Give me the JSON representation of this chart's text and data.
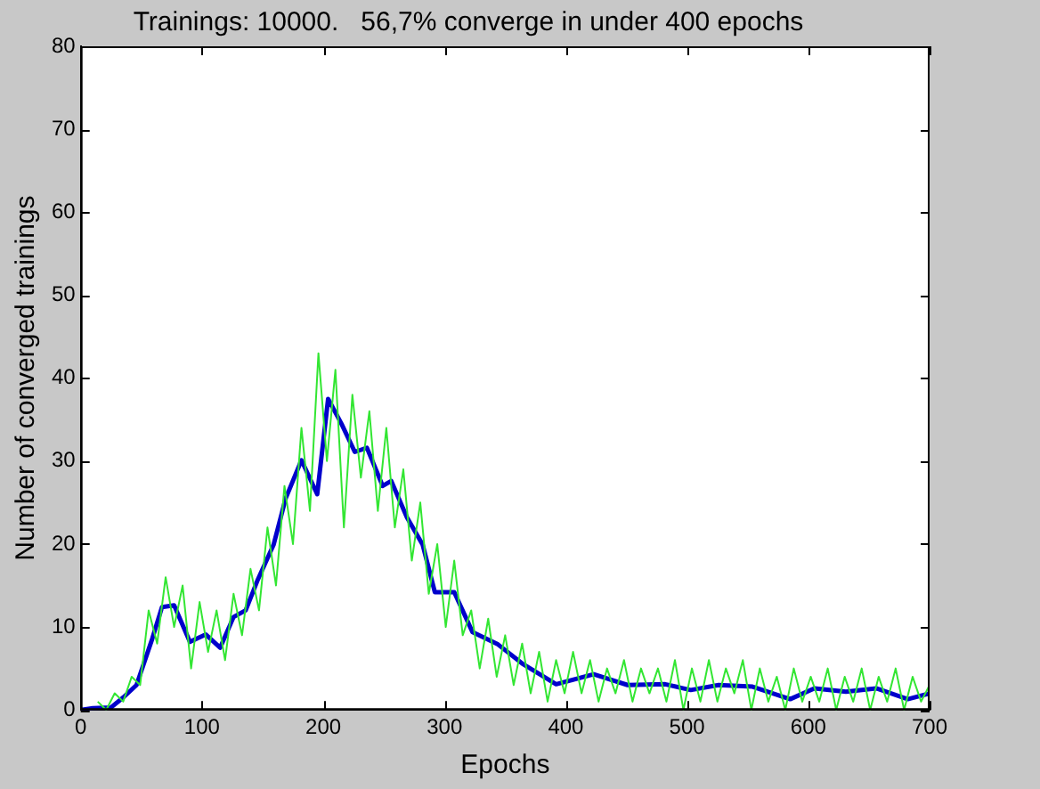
{
  "chart_data": {
    "type": "line",
    "title": "Trainings: 10000.   56,7% converge in under 400 epochs",
    "xlabel": "Epochs",
    "ylabel": "Number of converged trainings",
    "xlim": [
      0,
      700
    ],
    "xticks": [
      0,
      100,
      200,
      300,
      400,
      500,
      600,
      700
    ],
    "ylim": [
      0,
      80
    ],
    "yticks": [
      0,
      10,
      20,
      30,
      40,
      50,
      60,
      70,
      80
    ],
    "grid": false,
    "legend": false,
    "marker": "none",
    "line_style": "solid",
    "series": [
      {
        "color": "#33e633",
        "x": [
          14,
          21,
          28,
          35,
          42,
          49,
          56,
          63,
          70,
          77,
          84,
          91,
          98,
          105,
          112,
          119,
          126,
          133,
          140,
          147,
          154,
          161,
          168,
          175,
          182,
          189,
          196,
          203,
          210,
          217,
          224,
          231,
          238,
          245,
          252,
          259,
          266,
          273,
          280,
          287,
          294,
          301,
          308,
          315,
          322,
          329,
          336,
          343,
          350,
          357,
          364,
          371,
          378,
          385,
          392,
          399,
          406,
          413,
          420,
          427,
          434,
          441,
          448,
          455,
          462,
          469,
          476,
          483,
          490,
          497,
          504,
          511,
          518,
          525,
          532,
          539,
          546,
          553,
          560,
          567,
          574,
          581,
          588,
          595,
          602,
          609,
          616,
          623,
          630,
          637,
          644,
          651,
          658,
          665,
          672,
          679,
          686,
          693,
          700
        ],
        "values": [
          1,
          0,
          2,
          1,
          4,
          3,
          12,
          8,
          16,
          10,
          15,
          5,
          13,
          7,
          12,
          6,
          14,
          9,
          17,
          12,
          22,
          15,
          27,
          20,
          34,
          24,
          43,
          30,
          41,
          22,
          38,
          28,
          36,
          24,
          34,
          22,
          29,
          18,
          25,
          14,
          20,
          10,
          18,
          9,
          12,
          5,
          11,
          4,
          9,
          3,
          8,
          2,
          7,
          1,
          6,
          2,
          7,
          2,
          6,
          1,
          5,
          2,
          6,
          1,
          5,
          2,
          5,
          1,
          6,
          0,
          5,
          1,
          6,
          1,
          5,
          2,
          6,
          0,
          5,
          1,
          4,
          0,
          5,
          1,
          4,
          1,
          5,
          0,
          4,
          1,
          5,
          0,
          4,
          1,
          5,
          0,
          4,
          1,
          3
        ]
      },
      {
        "color": "#0000cc",
        "x": [
          0,
          10,
          25,
          35,
          46,
          59,
          67,
          77,
          90,
          103,
          115,
          126,
          136,
          146,
          159,
          169,
          182,
          195,
          204,
          215,
          226,
          236,
          249,
          256,
          269,
          282,
          292,
          308,
          323,
          344,
          364,
          392,
          423,
          451,
          482,
          503,
          526,
          554,
          585,
          605,
          631,
          656,
          682,
          700
        ],
        "values": [
          0,
          0.2,
          0.3,
          1.5,
          3,
          8.6,
          12.4,
          12.6,
          8.2,
          9.1,
          7.5,
          11.2,
          12,
          15.7,
          19.9,
          25.5,
          30.1,
          26,
          37.5,
          34.5,
          31.1,
          31.6,
          27,
          27.6,
          23.2,
          19.9,
          14.2,
          14.2,
          9.4,
          7.9,
          5.6,
          3.1,
          4.3,
          3,
          3.1,
          2.4,
          3,
          2.8,
          1.3,
          2.6,
          2.2,
          2.6,
          1.3,
          2
        ]
      }
    ]
  }
}
